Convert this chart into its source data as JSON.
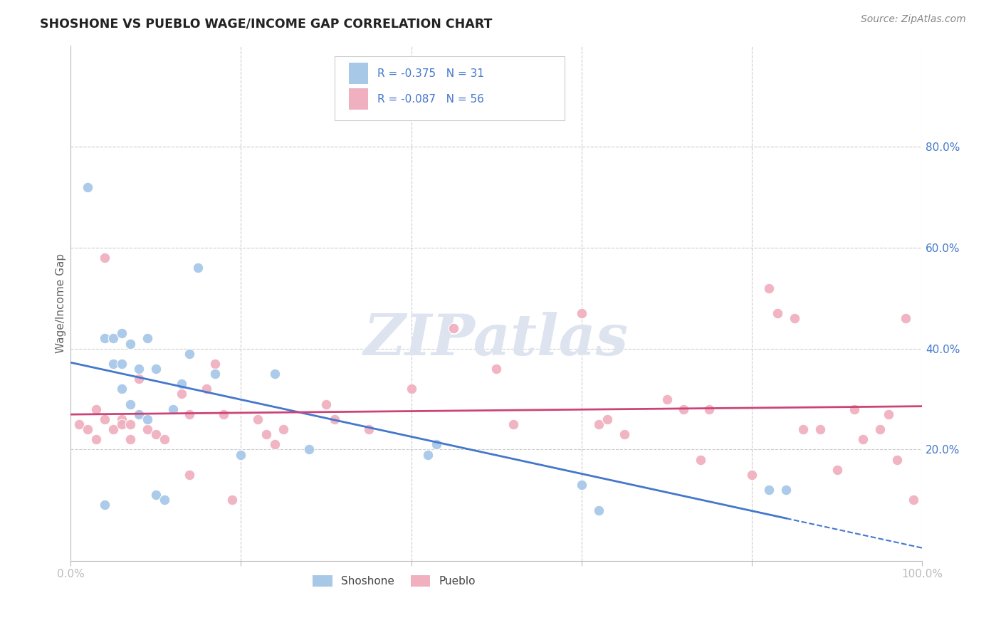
{
  "title": "SHOSHONE VS PUEBLO WAGE/INCOME GAP CORRELATION CHART",
  "source": "Source: ZipAtlas.com",
  "ylabel": "Wage/Income Gap",
  "xlim": [
    0.0,
    1.0
  ],
  "ylim": [
    -0.02,
    1.0
  ],
  "shoshone_color": "#a8c8e8",
  "pueblo_color": "#f0b0c0",
  "shoshone_line_color": "#4477cc",
  "pueblo_line_color": "#cc4477",
  "label_color": "#4477cc",
  "background_color": "#ffffff",
  "grid_color": "#cccccc",
  "watermark": "ZIPatlas",
  "watermark_color": "#dde4ef",
  "shoshone_R": -0.375,
  "shoshone_N": 31,
  "pueblo_R": -0.087,
  "pueblo_N": 56,
  "shoshone_x": [
    0.02,
    0.04,
    0.05,
    0.05,
    0.06,
    0.06,
    0.06,
    0.07,
    0.07,
    0.08,
    0.08,
    0.09,
    0.09,
    0.1,
    0.1,
    0.11,
    0.12,
    0.13,
    0.14,
    0.15,
    0.17,
    0.2,
    0.24,
    0.28,
    0.42,
    0.43,
    0.6,
    0.62,
    0.82,
    0.84,
    0.04
  ],
  "shoshone_y": [
    0.72,
    0.42,
    0.42,
    0.37,
    0.43,
    0.37,
    0.32,
    0.41,
    0.29,
    0.36,
    0.27,
    0.42,
    0.26,
    0.36,
    0.11,
    0.1,
    0.28,
    0.33,
    0.39,
    0.56,
    0.35,
    0.19,
    0.35,
    0.2,
    0.19,
    0.21,
    0.13,
    0.08,
    0.12,
    0.12,
    0.09
  ],
  "pueblo_x": [
    0.01,
    0.02,
    0.03,
    0.03,
    0.04,
    0.04,
    0.05,
    0.06,
    0.06,
    0.07,
    0.07,
    0.08,
    0.08,
    0.09,
    0.1,
    0.11,
    0.13,
    0.14,
    0.14,
    0.16,
    0.17,
    0.18,
    0.22,
    0.23,
    0.24,
    0.25,
    0.3,
    0.31,
    0.35,
    0.4,
    0.45,
    0.5,
    0.52,
    0.6,
    0.62,
    0.63,
    0.65,
    0.7,
    0.72,
    0.74,
    0.75,
    0.8,
    0.82,
    0.83,
    0.85,
    0.86,
    0.88,
    0.9,
    0.92,
    0.93,
    0.95,
    0.96,
    0.97,
    0.98,
    0.99,
    0.19
  ],
  "pueblo_y": [
    0.25,
    0.24,
    0.28,
    0.22,
    0.58,
    0.26,
    0.24,
    0.26,
    0.25,
    0.25,
    0.22,
    0.34,
    0.27,
    0.24,
    0.23,
    0.22,
    0.31,
    0.27,
    0.15,
    0.32,
    0.37,
    0.27,
    0.26,
    0.23,
    0.21,
    0.24,
    0.29,
    0.26,
    0.24,
    0.32,
    0.44,
    0.36,
    0.25,
    0.47,
    0.25,
    0.26,
    0.23,
    0.3,
    0.28,
    0.18,
    0.28,
    0.15,
    0.52,
    0.47,
    0.46,
    0.24,
    0.24,
    0.16,
    0.28,
    0.22,
    0.24,
    0.27,
    0.18,
    0.46,
    0.1,
    0.1
  ]
}
